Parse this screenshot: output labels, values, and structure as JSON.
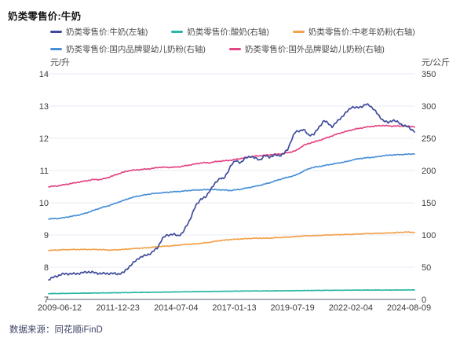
{
  "title": "奶类零售价:牛奶",
  "footer": {
    "source_label": "数据来源：同花顺iFinD"
  },
  "chart_data": {
    "type": "line",
    "title": "奶类零售价:牛奶",
    "legend_position": "top",
    "grid": true,
    "x_range": [
      2009.45,
      2024.6
    ],
    "x_ticks": [
      "2009-06-12",
      "2011-12-23",
      "2014-07-04",
      "2017-01-13",
      "2019-07-19",
      "2022-02-04",
      "2024-08-09"
    ],
    "left_axis": {
      "label": "元/升",
      "min": 7,
      "max": 14,
      "ticks": [
        14,
        13,
        12,
        11,
        10,
        9,
        8,
        7
      ]
    },
    "right_axis": {
      "label": "元/公斤",
      "min": 0,
      "max": 350,
      "ticks": [
        350,
        300,
        250,
        200,
        150,
        100,
        50,
        0
      ]
    },
    "series": [
      {
        "name": "奶类零售价:牛奶(左轴)",
        "axis": "left",
        "unit": "元/升",
        "color": "#3f4c9b",
        "points": [
          [
            2009.45,
            7.62
          ],
          [
            2009.7,
            7.7
          ],
          [
            2009.95,
            7.77
          ],
          [
            2010.2,
            7.8
          ],
          [
            2010.5,
            7.79
          ],
          [
            2010.8,
            7.82
          ],
          [
            2011.1,
            7.86
          ],
          [
            2011.4,
            7.82
          ],
          [
            2011.7,
            7.8
          ],
          [
            2012.0,
            7.81
          ],
          [
            2012.3,
            7.79
          ],
          [
            2012.55,
            7.83
          ],
          [
            2012.8,
            8.03
          ],
          [
            2013.0,
            8.16
          ],
          [
            2013.2,
            8.3
          ],
          [
            2013.45,
            8.36
          ],
          [
            2013.7,
            8.44
          ],
          [
            2013.95,
            8.6
          ],
          [
            2014.15,
            8.88
          ],
          [
            2014.35,
            9.0
          ],
          [
            2014.6,
            9.02
          ],
          [
            2014.8,
            8.98
          ],
          [
            2015.0,
            9.06
          ],
          [
            2015.3,
            9.48
          ],
          [
            2015.55,
            9.92
          ],
          [
            2015.75,
            10.12
          ],
          [
            2015.95,
            10.16
          ],
          [
            2016.15,
            10.42
          ],
          [
            2016.35,
            10.6
          ],
          [
            2016.55,
            10.78
          ],
          [
            2016.7,
            10.74
          ],
          [
            2016.85,
            10.92
          ],
          [
            2017.0,
            11.18
          ],
          [
            2017.2,
            11.3
          ],
          [
            2017.4,
            11.25
          ],
          [
            2017.6,
            11.38
          ],
          [
            2017.8,
            11.45
          ],
          [
            2018.0,
            11.38
          ],
          [
            2018.2,
            11.33
          ],
          [
            2018.4,
            11.46
          ],
          [
            2018.6,
            11.42
          ],
          [
            2018.8,
            11.48
          ],
          [
            2019.0,
            11.46
          ],
          [
            2019.2,
            11.53
          ],
          [
            2019.35,
            11.65
          ],
          [
            2019.5,
            11.95
          ],
          [
            2019.65,
            12.18
          ],
          [
            2019.85,
            12.24
          ],
          [
            2020.0,
            12.28
          ],
          [
            2020.2,
            12.1
          ],
          [
            2020.45,
            12.13
          ],
          [
            2020.65,
            12.35
          ],
          [
            2020.85,
            12.55
          ],
          [
            2021.05,
            12.45
          ],
          [
            2021.2,
            12.36
          ],
          [
            2021.5,
            12.6
          ],
          [
            2021.8,
            12.82
          ],
          [
            2022.0,
            12.98
          ],
          [
            2022.2,
            12.94
          ],
          [
            2022.45,
            13.0
          ],
          [
            2022.6,
            13.05
          ],
          [
            2022.75,
            13.02
          ],
          [
            2022.9,
            12.92
          ],
          [
            2023.1,
            12.72
          ],
          [
            2023.3,
            12.56
          ],
          [
            2023.5,
            12.48
          ],
          [
            2023.7,
            12.57
          ],
          [
            2023.9,
            12.5
          ],
          [
            2024.1,
            12.42
          ],
          [
            2024.35,
            12.34
          ],
          [
            2024.6,
            12.22
          ]
        ]
      },
      {
        "name": "奶类零售价:酸奶(右轴)",
        "axis": "right",
        "unit": "元/公斤",
        "color": "#2ab6a3",
        "points": [
          [
            2009.45,
            9.0
          ],
          [
            2010.5,
            9.5
          ],
          [
            2011.5,
            10.0
          ],
          [
            2012.5,
            10.5
          ],
          [
            2013.5,
            11.0
          ],
          [
            2014.5,
            11.5
          ],
          [
            2015.5,
            12.0
          ],
          [
            2016.5,
            12.5
          ],
          [
            2017.5,
            13.0
          ],
          [
            2018.5,
            13.2
          ],
          [
            2019.5,
            13.5
          ],
          [
            2020.5,
            14.0
          ],
          [
            2021.5,
            14.2
          ],
          [
            2022.5,
            14.5
          ],
          [
            2023.5,
            14.5
          ],
          [
            2024.6,
            14.8
          ]
        ]
      },
      {
        "name": "奶类零售价:中老年奶粉(右轴)",
        "axis": "right",
        "unit": "元/公斤",
        "color": "#f2a24c",
        "points": [
          [
            2009.45,
            76
          ],
          [
            2010.0,
            77
          ],
          [
            2010.5,
            77.5
          ],
          [
            2011.0,
            77.5
          ],
          [
            2011.5,
            77.5
          ],
          [
            2012.0,
            76.5
          ],
          [
            2012.5,
            77.5
          ],
          [
            2013.0,
            79
          ],
          [
            2013.5,
            80
          ],
          [
            2014.0,
            82
          ],
          [
            2014.5,
            83
          ],
          [
            2015.0,
            85
          ],
          [
            2015.5,
            86
          ],
          [
            2016.0,
            88
          ],
          [
            2016.5,
            91
          ],
          [
            2017.0,
            93
          ],
          [
            2017.5,
            94
          ],
          [
            2018.0,
            95
          ],
          [
            2018.5,
            95
          ],
          [
            2019.0,
            96
          ],
          [
            2019.5,
            97
          ],
          [
            2020.0,
            98.5
          ],
          [
            2020.5,
            99
          ],
          [
            2021.0,
            100
          ],
          [
            2021.5,
            100.5
          ],
          [
            2022.0,
            101
          ],
          [
            2022.5,
            102
          ],
          [
            2023.0,
            102.5
          ],
          [
            2023.5,
            103
          ],
          [
            2024.0,
            104
          ],
          [
            2024.3,
            104.5
          ],
          [
            2024.6,
            104
          ]
        ]
      },
      {
        "name": "奶类零售价:国内品牌婴幼儿奶粉(右轴)",
        "axis": "right",
        "unit": "元/公斤",
        "color": "#4a90d8",
        "points": [
          [
            2009.45,
            125
          ],
          [
            2009.8,
            125.5
          ],
          [
            2010.1,
            127
          ],
          [
            2010.4,
            129
          ],
          [
            2010.7,
            131
          ],
          [
            2011.0,
            134
          ],
          [
            2011.3,
            138
          ],
          [
            2011.6,
            142
          ],
          [
            2011.9,
            145
          ],
          [
            2012.2,
            149
          ],
          [
            2012.5,
            153
          ],
          [
            2012.8,
            157
          ],
          [
            2013.1,
            160
          ],
          [
            2013.4,
            162
          ],
          [
            2013.7,
            164
          ],
          [
            2014.0,
            165
          ],
          [
            2014.3,
            166
          ],
          [
            2014.6,
            167
          ],
          [
            2015.0,
            168
          ],
          [
            2015.4,
            169.5
          ],
          [
            2015.8,
            170
          ],
          [
            2016.2,
            170.5
          ],
          [
            2016.6,
            170
          ],
          [
            2017.0,
            169
          ],
          [
            2017.4,
            171
          ],
          [
            2017.8,
            174
          ],
          [
            2018.2,
            177
          ],
          [
            2018.6,
            181
          ],
          [
            2019.0,
            186
          ],
          [
            2019.4,
            190
          ],
          [
            2019.7,
            193
          ],
          [
            2020.0,
            199
          ],
          [
            2020.3,
            204
          ],
          [
            2020.6,
            206
          ],
          [
            2020.9,
            208
          ],
          [
            2021.2,
            210
          ],
          [
            2021.5,
            212
          ],
          [
            2021.8,
            214
          ],
          [
            2022.1,
            217
          ],
          [
            2022.4,
            219
          ],
          [
            2022.7,
            220
          ],
          [
            2023.0,
            221
          ],
          [
            2023.3,
            223
          ],
          [
            2023.6,
            224
          ],
          [
            2023.9,
            224.5
          ],
          [
            2024.2,
            225
          ],
          [
            2024.6,
            226
          ]
        ]
      },
      {
        "name": "奶类零售价:国外品牌婴幼儿奶粉(右轴)",
        "axis": "right",
        "unit": "元/公斤",
        "color": "#e34684",
        "points": [
          [
            2009.45,
            175
          ],
          [
            2009.8,
            176
          ],
          [
            2010.1,
            178
          ],
          [
            2010.4,
            180
          ],
          [
            2010.7,
            182
          ],
          [
            2011.0,
            184
          ],
          [
            2011.3,
            186
          ],
          [
            2011.6,
            186
          ],
          [
            2011.9,
            189
          ],
          [
            2012.2,
            193
          ],
          [
            2012.5,
            197
          ],
          [
            2012.8,
            200
          ],
          [
            2013.1,
            201
          ],
          [
            2013.4,
            202
          ],
          [
            2013.7,
            203
          ],
          [
            2014.0,
            205
          ],
          [
            2014.3,
            205
          ],
          [
            2014.6,
            205
          ],
          [
            2014.9,
            206
          ],
          [
            2015.2,
            208
          ],
          [
            2015.5,
            210
          ],
          [
            2015.8,
            212
          ],
          [
            2016.1,
            212
          ],
          [
            2016.4,
            214
          ],
          [
            2016.7,
            215
          ],
          [
            2017.0,
            216
          ],
          [
            2017.3,
            218
          ],
          [
            2017.6,
            220
          ],
          [
            2017.9,
            222
          ],
          [
            2018.2,
            223
          ],
          [
            2018.5,
            224
          ],
          [
            2018.8,
            225
          ],
          [
            2019.1,
            226
          ],
          [
            2019.4,
            228
          ],
          [
            2019.7,
            231
          ],
          [
            2020.0,
            239
          ],
          [
            2020.3,
            243
          ],
          [
            2020.6,
            246
          ],
          [
            2020.9,
            250
          ],
          [
            2021.2,
            254
          ],
          [
            2021.5,
            258
          ],
          [
            2021.8,
            261
          ],
          [
            2022.1,
            264
          ],
          [
            2022.4,
            266
          ],
          [
            2022.7,
            268
          ],
          [
            2023.0,
            269
          ],
          [
            2023.3,
            270
          ],
          [
            2023.6,
            269
          ],
          [
            2023.9,
            269
          ],
          [
            2024.2,
            269
          ],
          [
            2024.6,
            268
          ]
        ]
      }
    ]
  }
}
